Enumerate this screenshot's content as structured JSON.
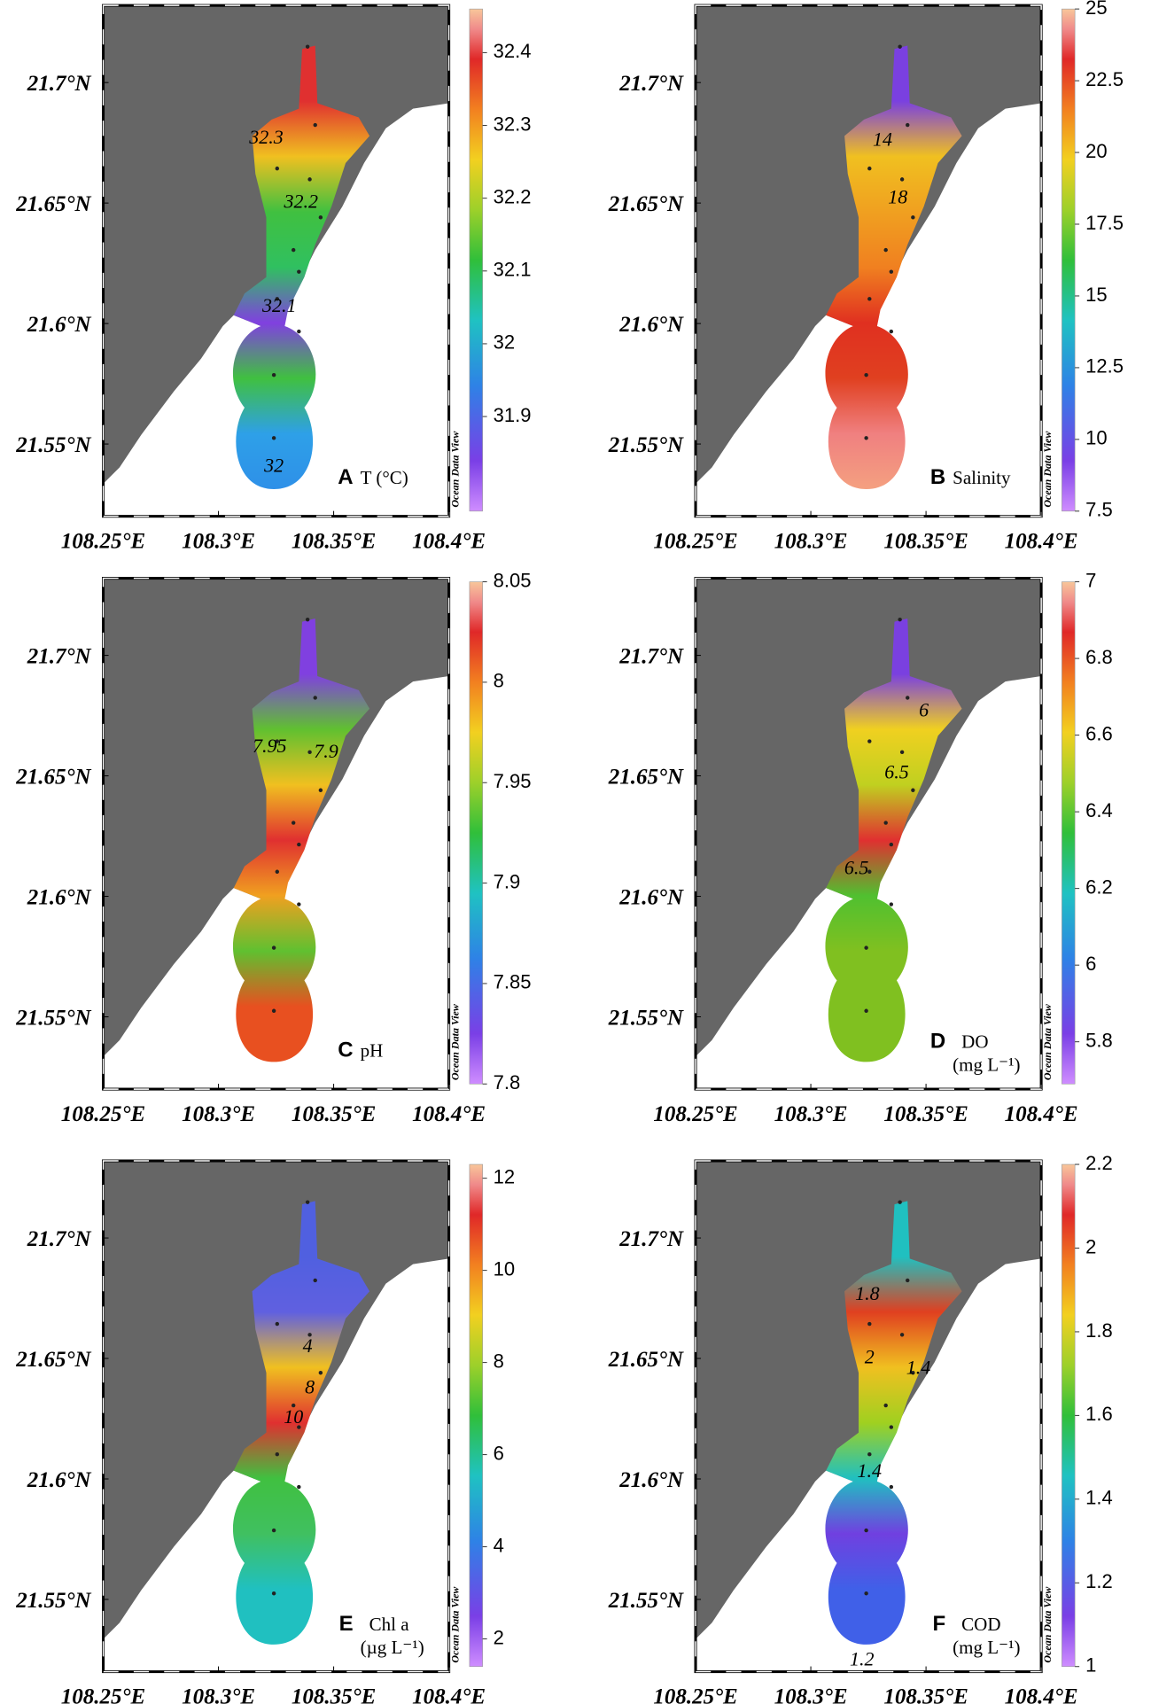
{
  "map": {
    "lat_lim": [
      21.52,
      21.732
    ],
    "lon_lim": [
      108.25,
      108.4
    ],
    "lat_ticks": [
      {
        "value": 21.55,
        "label": "21.55°N"
      },
      {
        "value": 21.6,
        "label": "21.6°N"
      },
      {
        "value": 21.65,
        "label": "21.65°N"
      },
      {
        "value": 21.7,
        "label": "21.7°N"
      }
    ],
    "lon_ticks": [
      {
        "value": 108.25,
        "label": "108.25°E"
      },
      {
        "value": 108.3,
        "label": "108.3°E"
      },
      {
        "value": 108.35,
        "label": "108.35°E"
      },
      {
        "value": 108.4,
        "label": "108.4°E"
      }
    ],
    "watermark": "Ocean Data View"
  },
  "panels": [
    {
      "label": "A",
      "variable": "T (°C)",
      "cbar_lim": [
        31.77,
        32.46
      ],
      "cbar_ticks": [
        31.9,
        32,
        32.1,
        32.2,
        32.3,
        32.4
      ],
      "field_colors": [
        "#e03030",
        "#e03030",
        "#f0c020",
        "#40c040",
        "#30c060",
        "#8040e0",
        "#40c040",
        "#2ea0e8",
        "#2e90e8"
      ],
      "contour_labels": [
        "32.3",
        "32.2",
        "32.1",
        "32"
      ]
    },
    {
      "label": "B",
      "variable": "Salinity",
      "cbar_lim": [
        7.5,
        25
      ],
      "cbar_ticks": [
        7.5,
        10,
        12.5,
        15,
        17.5,
        20,
        22.5,
        25
      ],
      "field_colors": [
        "#7a40e0",
        "#7a40e0",
        "#f0c020",
        "#f0a020",
        "#f08020",
        "#e03020",
        "#e04020",
        "#f08080",
        "#f4a080"
      ],
      "contour_labels": [
        "14",
        "18"
      ]
    },
    {
      "label": "C",
      "variable": "pH",
      "cbar_lim": [
        7.8,
        8.05
      ],
      "cbar_ticks": [
        7.8,
        7.85,
        7.9,
        7.95,
        8,
        8.05
      ],
      "field_colors": [
        "#8040e0",
        "#8040e0",
        "#60c030",
        "#f0c020",
        "#e03030",
        "#f0a020",
        "#60c030",
        "#e85020",
        "#e85020"
      ],
      "contour_labels": [
        "7.95",
        "7.9"
      ]
    },
    {
      "label": "D",
      "variable": "DO",
      "unit": "(mg L⁻¹)",
      "cbar_lim": [
        5.69,
        7
      ],
      "cbar_ticks": [
        5.8,
        6,
        6.2,
        6.4,
        6.6,
        6.8,
        7
      ],
      "field_colors": [
        "#7a40e0",
        "#7a40e0",
        "#f0d020",
        "#c0d020",
        "#e03030",
        "#50c030",
        "#80c020",
        "#80c020",
        "#80c020"
      ],
      "contour_labels": [
        "6",
        "6.5",
        "6.5"
      ]
    },
    {
      "label": "E",
      "variable": "Chl a",
      "unit": "(µg L⁻¹)",
      "cbar_lim": [
        1.4,
        12.3
      ],
      "cbar_ticks": [
        2,
        4,
        6,
        8,
        10,
        12
      ],
      "field_colors": [
        "#5060e0",
        "#5060e0",
        "#6060e0",
        "#f0c020",
        "#e03030",
        "#40c040",
        "#40c060",
        "#20c0c0",
        "#20c0c0"
      ],
      "contour_labels": [
        "4",
        "8",
        "10"
      ]
    },
    {
      "label": "F",
      "variable": "COD",
      "unit": "(mg L⁻¹)",
      "cbar_lim": [
        1,
        2.2
      ],
      "cbar_ticks": [
        1,
        1.2,
        1.4,
        1.6,
        1.8,
        2,
        2.2
      ],
      "field_colors": [
        "#20c0c0",
        "#20c0c0",
        "#e04020",
        "#f0c020",
        "#a0d020",
        "#20c0c0",
        "#7040e0",
        "#4060e8",
        "#4060e8"
      ],
      "contour_labels": [
        "1.8",
        "2",
        "1.4",
        "1.4",
        "1.2"
      ]
    }
  ]
}
